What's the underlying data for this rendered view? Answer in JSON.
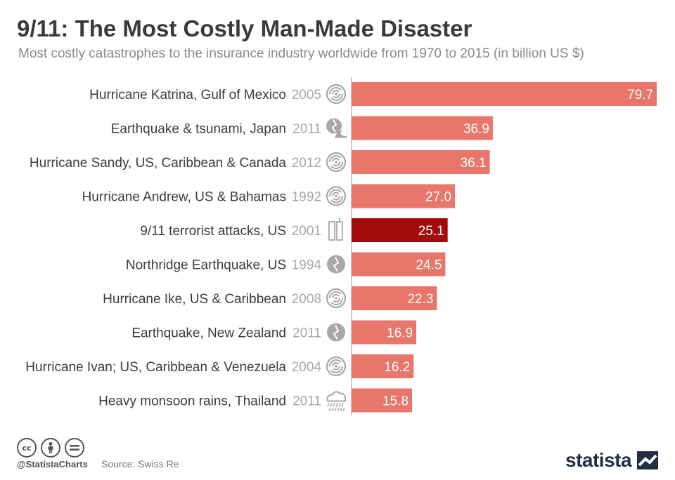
{
  "header": {
    "title": "9/11: The Most Costly Man-Made Disaster",
    "subtitle": "Most costly catastrophes to the insurance industry worldwide from 1970 to 2015 (in billion US $)"
  },
  "chart_data": {
    "type": "bar",
    "orientation": "horizontal",
    "title": "9/11: The Most Costly Man-Made Disaster",
    "subtitle": "Most costly catastrophes to the insurance industry worldwide from 1970 to 2015 (in billion US $)",
    "categories": [
      "Hurricane Katrina, Gulf of Mexico",
      "Earthquake & tsunami, Japan",
      "Hurricane Sandy, US, Caribbean & Canada",
      "Hurricane Andrew, US & Bahamas",
      "9/11 terrorist attacks, US",
      "Northridge Earthquake, US",
      "Hurricane Ike, US & Caribbean",
      "Earthquake, New Zealand",
      "Hurricane Ivan; US, Caribbean & Venezuela",
      "Heavy monsoon rains, Thailand"
    ],
    "years": [
      "2005",
      "2011",
      "2012",
      "1992",
      "2001",
      "1994",
      "2008",
      "2011",
      "2004",
      "2011"
    ],
    "icons": [
      "hurricane-icon",
      "tsunami-icon",
      "hurricane-icon",
      "hurricane-icon",
      "towers-icon",
      "earthquake-icon",
      "hurricane-icon",
      "earthquake-icon",
      "hurricane-icon",
      "rain-icon"
    ],
    "values": [
      79.7,
      36.9,
      36.1,
      27.0,
      25.1,
      24.5,
      22.3,
      16.9,
      16.2,
      15.8
    ],
    "value_labels": [
      "79.7",
      "36.9",
      "36.1",
      "27.0",
      "25.1",
      "24.5",
      "22.3",
      "16.9",
      "16.2",
      "15.8"
    ],
    "highlight_index": 4,
    "xlim": [
      0,
      79.7
    ],
    "grid": false,
    "colors": {
      "bar": "#e8766a",
      "highlight": "#a30b0b",
      "axis": "#bbbbbb",
      "icon": "#a8a8a8"
    }
  },
  "footer": {
    "license_icons": [
      "cc-icon",
      "by-icon",
      "nd-icon"
    ],
    "cc_text": "cc",
    "handle": "@StatistaCharts",
    "source": "Source: Swiss Re",
    "brand": "statista"
  }
}
